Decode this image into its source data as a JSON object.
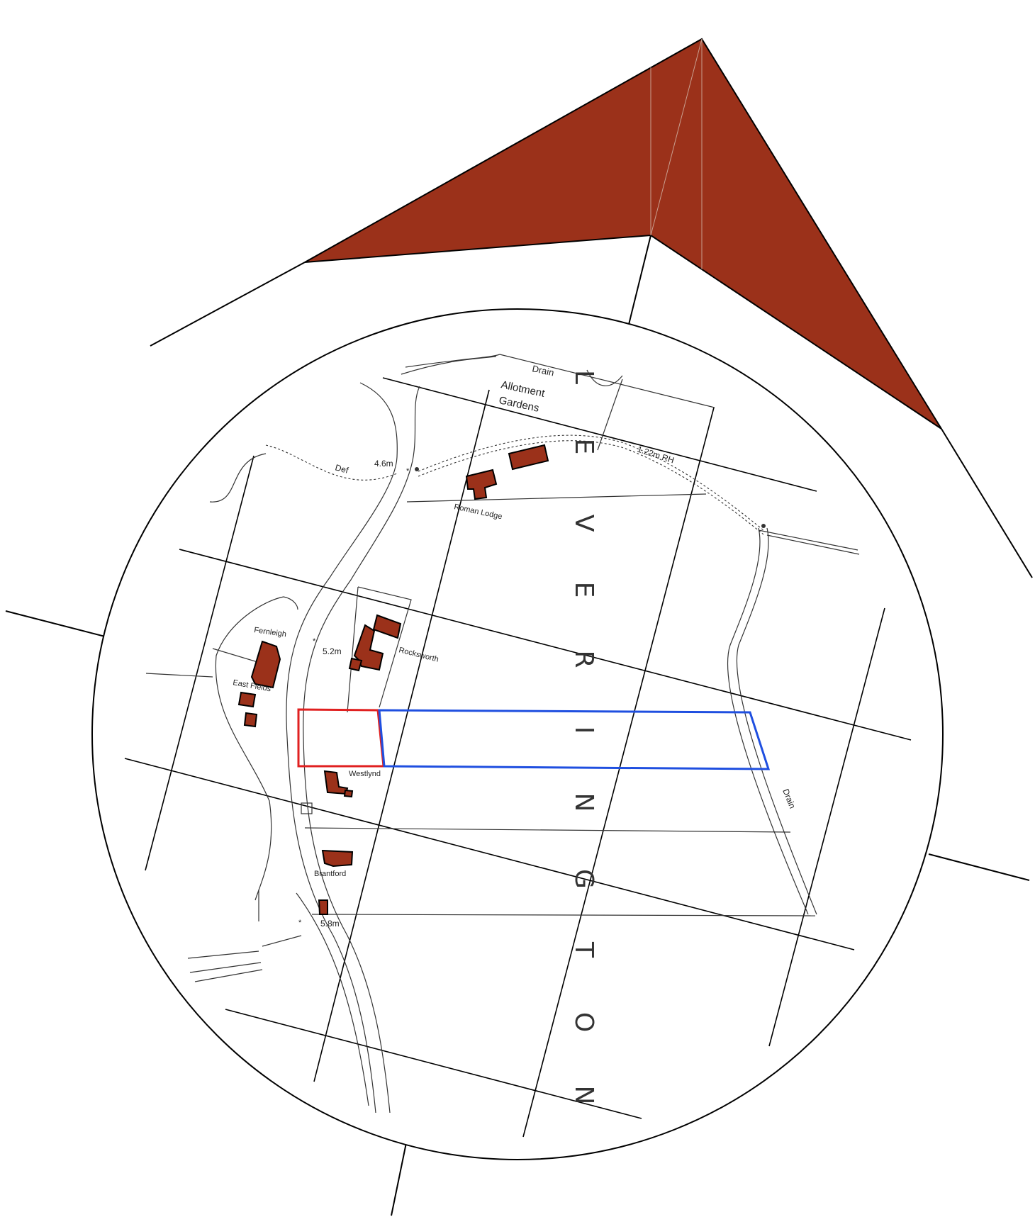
{
  "village_name_letters": [
    "L",
    "E",
    "V",
    "E",
    "R",
    "I",
    "N",
    "G",
    "T",
    "O",
    "N"
  ],
  "labels": {
    "drain_north": "Drain",
    "allotment_line1": "Allotment",
    "allotment_line2": "Gardens",
    "rh": "1.22m RH",
    "def": "Def",
    "spot_46": "4.6m",
    "roman_lodge": "Roman Lodge",
    "fernleigh": "Fernleigh",
    "spot_52": "5.2m",
    "rocksworth": "Rocksworth",
    "east_fields": "East Fields",
    "westlynd": "Westlynd",
    "drain_east": "Drain",
    "brantford": "Brantford",
    "spot_58": "5.8m"
  },
  "colors": {
    "building_fill": "#9b311a",
    "roof_fill": "#9b311a",
    "site_boundary": "#e02020",
    "ownership_boundary": "#1f4fe0",
    "linework": "#111111"
  }
}
